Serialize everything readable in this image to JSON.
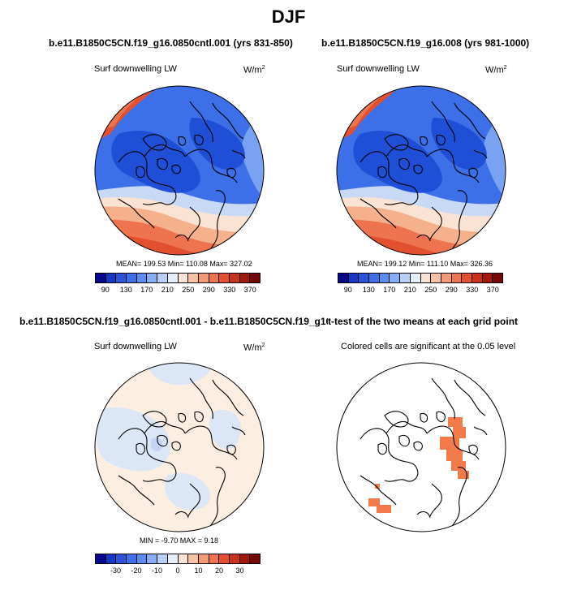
{
  "title": "DJF",
  "panels": [
    {
      "title": "b.e11.B1850C5CN.f19_g16.0850cntl.001 (yrs 831-850)",
      "variable": "Surf downwelling LW",
      "units": "W/m",
      "units_sup": "2",
      "stats": "MEAN= 199.53  Min= 110.08  Max= 327.02"
    },
    {
      "title": "b.e11.B1850C5CN.f19_g16.008 (yrs 981-1000)",
      "variable": "Surf downwelling LW",
      "units": "W/m",
      "units_sup": "2",
      "stats": "MEAN= 199.12  Min= 111.10  Max= 326.36"
    },
    {
      "title": "b.e11.B1850C5CN.f19_g16.0850cntl.001 - b.e11.B1850C5CN.f19_g16.008",
      "variable": "Surf downwelling LW",
      "units": "W/m",
      "units_sup": "2",
      "stats": "MIN =  -9.70 MAX =   9.18"
    },
    {
      "title": "t-test of the two means at each grid point",
      "variable": "Colored cells are significant at the 0.05 level"
    }
  ],
  "colorbar_abs": {
    "colors": [
      "#08088a",
      "#1738c4",
      "#2a55d8",
      "#3d6fe8",
      "#5b8cf2",
      "#86aef7",
      "#b8d0f8",
      "#e6eefa",
      "#fbe4d6",
      "#f8c2a4",
      "#f49b76",
      "#ee744f",
      "#e2502f",
      "#c8321a",
      "#a31a0c",
      "#760808"
    ],
    "labels": [
      "90",
      "130",
      "170",
      "210",
      "250",
      "290",
      "330",
      "370"
    ]
  },
  "colorbar_diff": {
    "colors": [
      "#08088a",
      "#1738c4",
      "#2a55d8",
      "#3d6fe8",
      "#5b8cf2",
      "#86aef7",
      "#b8d0f8",
      "#e6eefa",
      "#fbe4d6",
      "#f8c2a4",
      "#f49b76",
      "#ee744f",
      "#e2502f",
      "#c8321a",
      "#a31a0c",
      "#760808"
    ],
    "labels": [
      "-30",
      "-20",
      "-10",
      "0",
      "10",
      "20",
      "30"
    ]
  },
  "map_colors": {
    "deep_blue": "#1f4fd6",
    "mid_blue": "#3d6fe8",
    "light_blue": "#7aa2f2",
    "pale_blue": "#c8d9f6",
    "pale_orange": "#fbe3d3",
    "light_orange": "#f5b18b",
    "orange": "#ee744f",
    "red_orange": "#e2502f",
    "diff_base": "#fdeee2",
    "diff_blue": "#dbe6f7",
    "diff_blue2": "#c3d5f4",
    "sig_red": "#f37a4a"
  }
}
